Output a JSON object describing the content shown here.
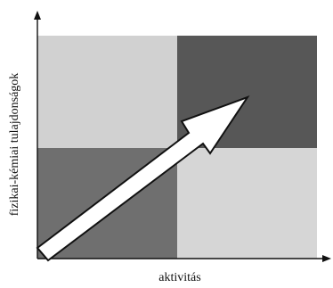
{
  "diagram": {
    "axes": {
      "x_label": "aktivitás",
      "y_label": "fizikai-kémiai tulajdonságok"
    },
    "quadrants": {
      "top_left": {
        "color": "#d1d1d1"
      },
      "top_right": {
        "color": "#575757"
      },
      "bottom_left": {
        "color": "#6f6f6f"
      },
      "bottom_right": {
        "color": "#d6d6d6"
      }
    },
    "arrow": {
      "fill": "#ffffff",
      "stroke": "#111111"
    },
    "axis_color": "#111111"
  }
}
